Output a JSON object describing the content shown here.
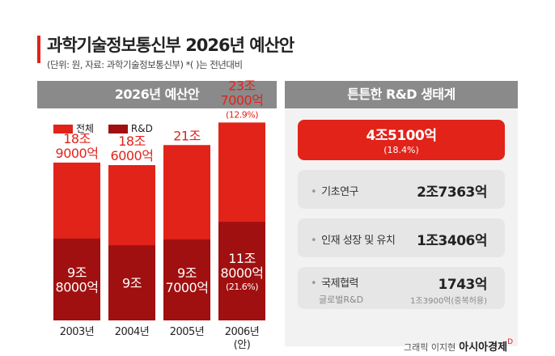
{
  "header": {
    "title": "과학기술정보통신부 2026년 예산안",
    "subtitle": "(단위: 원, 자료: 과학기술정보통신부)  *( )는 전년대비"
  },
  "left_panel": {
    "title": "2026년 예산안"
  },
  "right_panel": {
    "title": "튼튼한 R&D 생태계"
  },
  "chart_data": {
    "type": "bar",
    "categories": [
      "2003년",
      "2004년",
      "2005년",
      "2006년"
    ],
    "category_sub": [
      "",
      "",
      "",
      "(안)"
    ],
    "series": [
      {
        "name": "전체",
        "color": "#e2231a",
        "values": [
          189000,
          186000,
          210000,
          237000
        ],
        "labels": [
          [
            "18조",
            "9000억"
          ],
          [
            "18조",
            "6000억"
          ],
          [
            "21조"
          ],
          [
            "23조",
            "7000억"
          ]
        ],
        "notes": [
          "",
          "",
          "",
          "(12.9%)"
        ]
      },
      {
        "name": "R&D",
        "color": "#a01010",
        "values": [
          98000,
          90000,
          97000,
          118000
        ],
        "labels": [
          [
            "9조",
            "8000억"
          ],
          [
            "9조"
          ],
          [
            "9조",
            "7000억"
          ],
          [
            "11조",
            "8000억"
          ]
        ],
        "notes": [
          "",
          "",
          "",
          "(21.6%)"
        ]
      }
    ],
    "unit": "억",
    "ylim": [
      0,
      250000
    ]
  },
  "breakdown": {
    "rd_total": {
      "value": "4조5100억",
      "change": "(18.4%)"
    },
    "items": [
      {
        "label": "기초연구",
        "value": "2조7363억"
      },
      {
        "label": "인재 성장 및 유치",
        "value": "1조3406억"
      },
      {
        "label": "국제협력",
        "value": "1743억",
        "sub_label": "글로벌R&D",
        "sub_value": "1조3900억(중복허용)"
      }
    ]
  },
  "credit": {
    "text": "그래픽 이지현",
    "brand": "아시아경제",
    "mark": "D"
  }
}
